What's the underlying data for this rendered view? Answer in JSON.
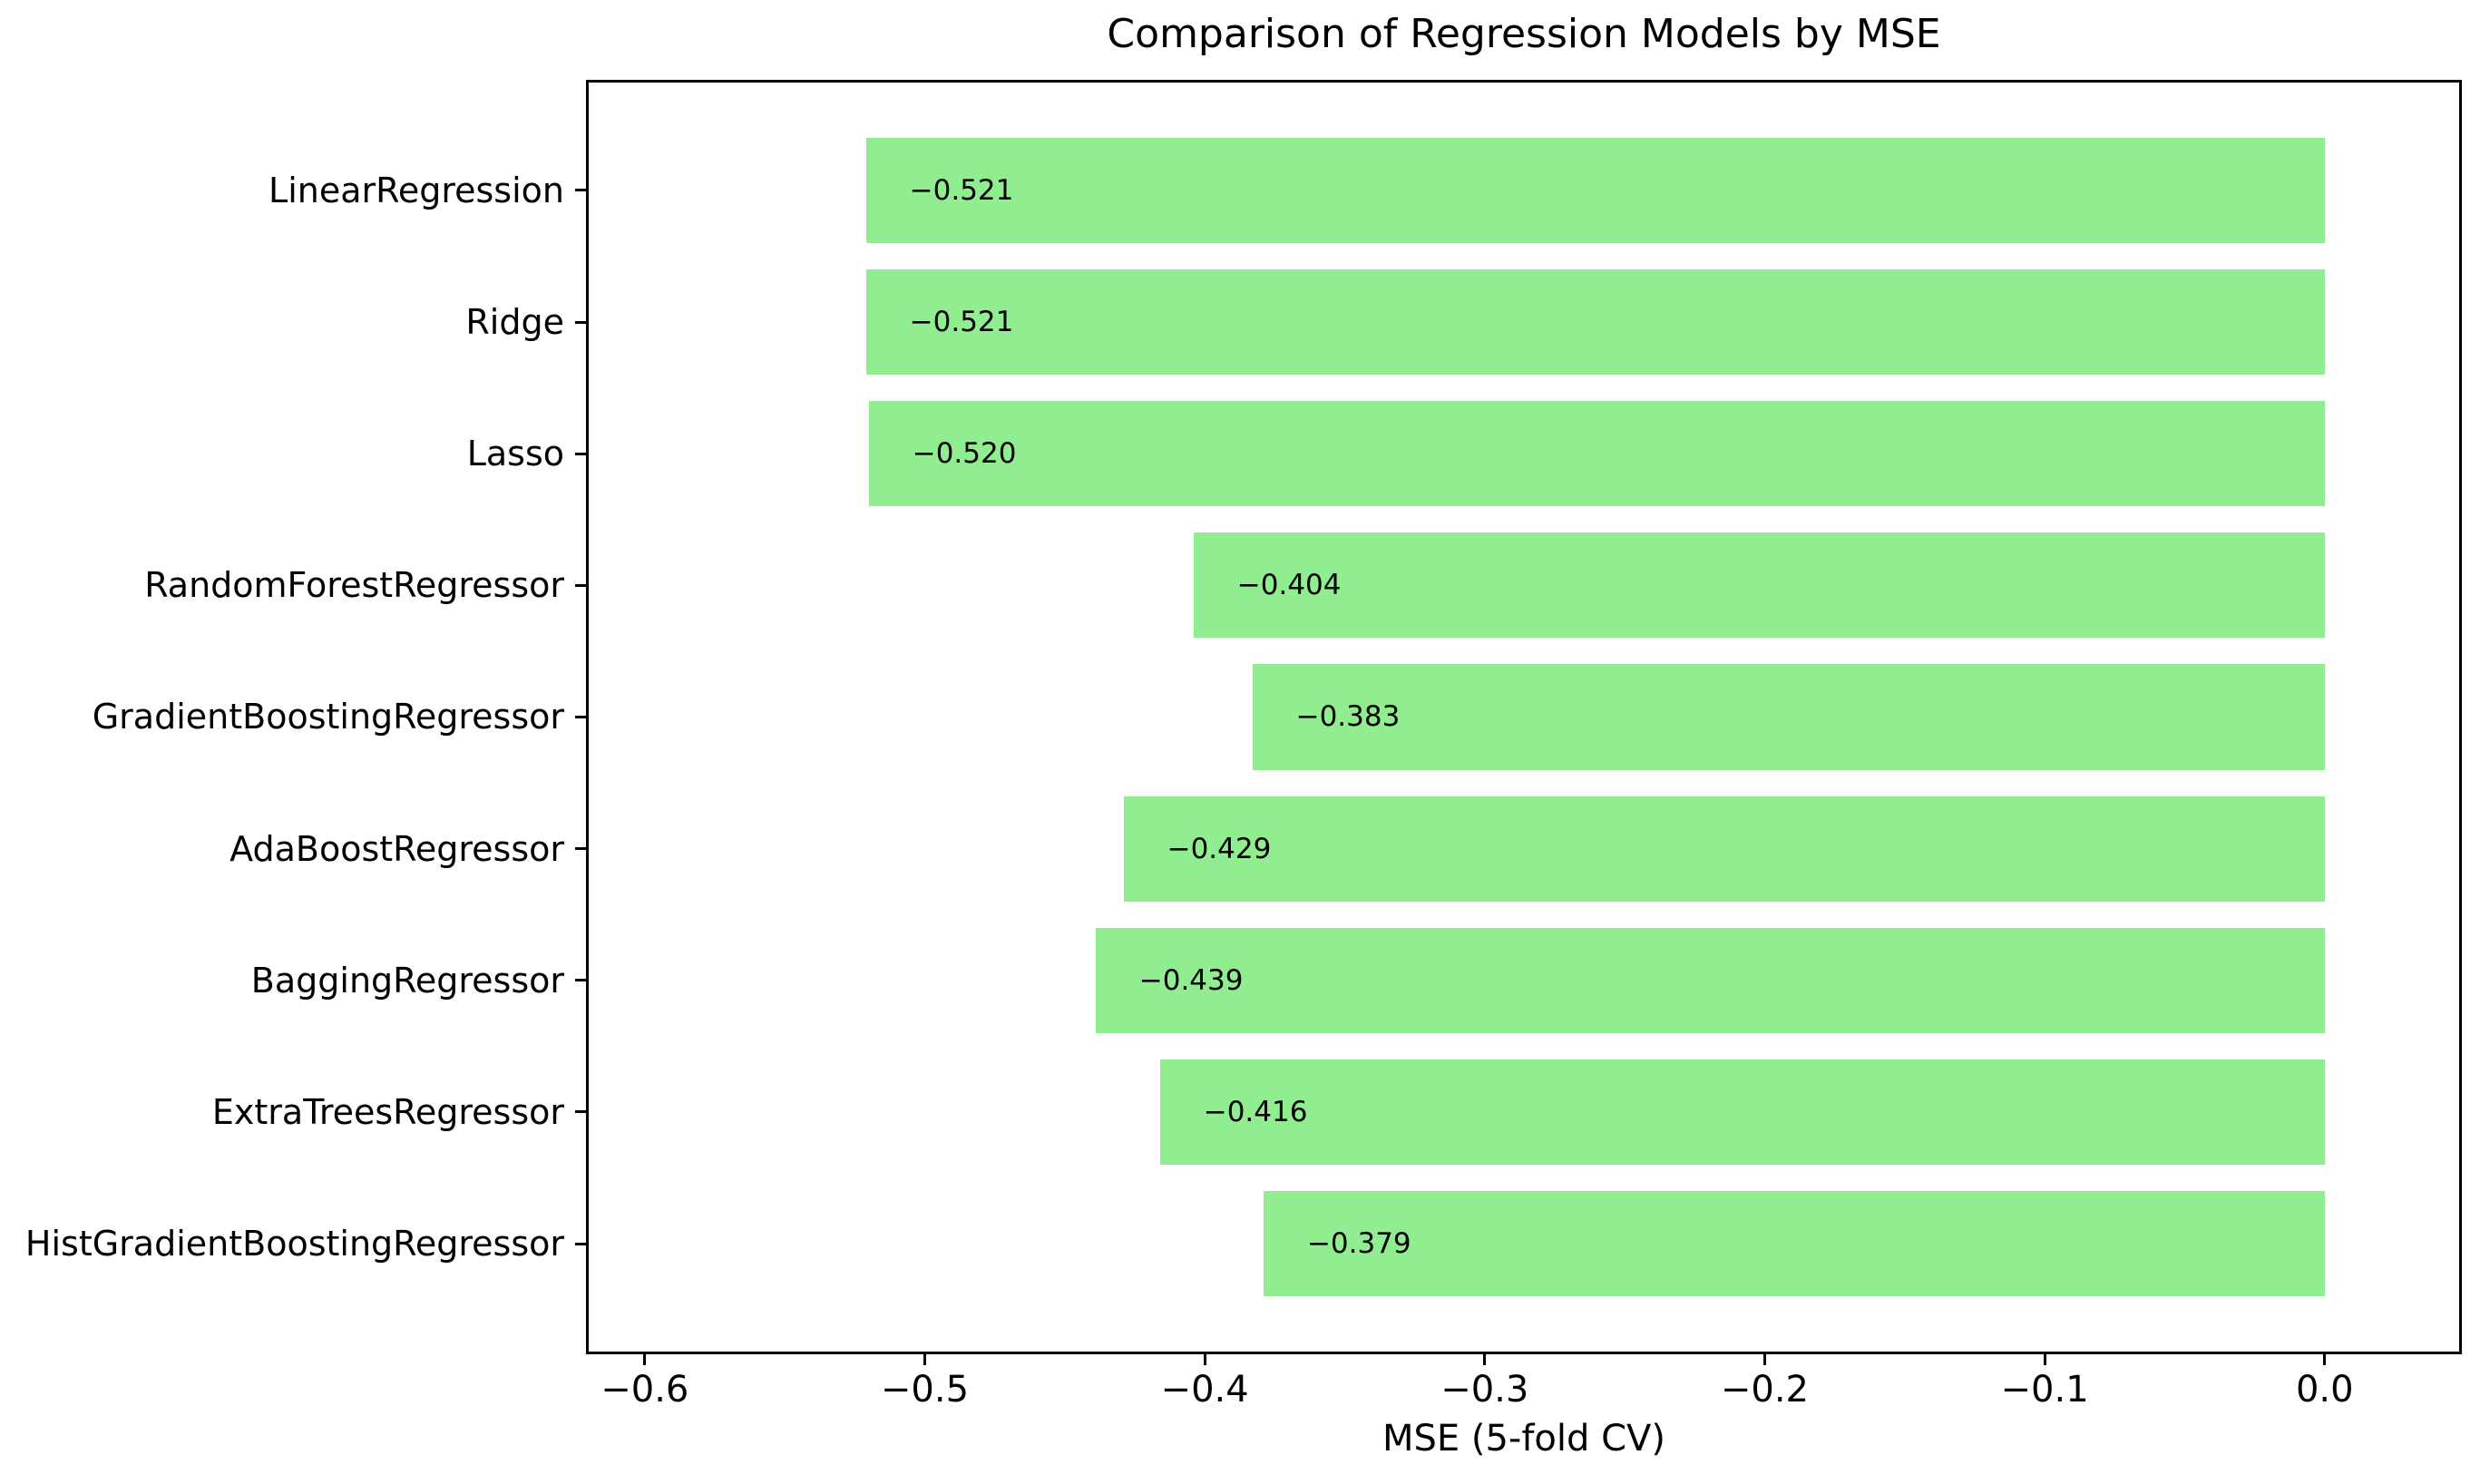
{
  "chart_data": {
    "type": "bar",
    "orientation": "horizontal",
    "title": "Comparison of Regression Models by MSE",
    "xlabel": "MSE (5-fold CV)",
    "ylabel": "",
    "categories": [
      "LinearRegression",
      "Ridge",
      "Lasso",
      "RandomForestRegressor",
      "GradientBoostingRegressor",
      "AdaBoostRegressor",
      "BaggingRegressor",
      "ExtraTreesRegressor",
      "HistGradientBoostingRegressor"
    ],
    "values": [
      -0.521,
      -0.521,
      -0.52,
      -0.404,
      -0.383,
      -0.429,
      -0.439,
      -0.416,
      -0.379
    ],
    "bar_labels": [
      "−0.521",
      "−0.521",
      "−0.520",
      "−0.404",
      "−0.383",
      "−0.429",
      "−0.439",
      "−0.416",
      "−0.379"
    ],
    "x_ticks": [
      -0.6,
      -0.5,
      -0.4,
      -0.3,
      -0.2,
      -0.1,
      0.0
    ],
    "x_tick_labels": [
      "−0.6",
      "−0.5",
      "−0.4",
      "−0.3",
      "−0.2",
      "−0.1",
      "0.0"
    ],
    "xlim": [
      -0.621,
      0.049
    ],
    "bar_color": "#90EE90",
    "text_color": "#000000",
    "background_color": "#ffffff",
    "grid": false,
    "legend": null
  }
}
